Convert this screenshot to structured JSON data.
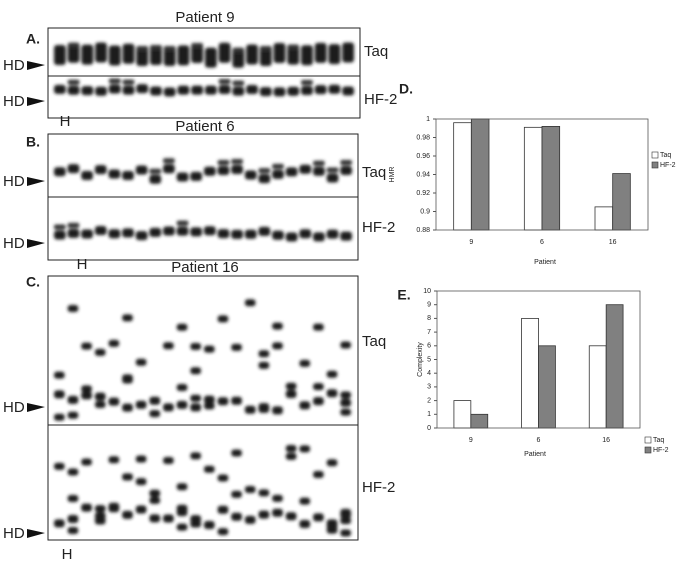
{
  "panels": [
    {
      "letter": "A.",
      "title": "Patient 9",
      "lane_label": "H",
      "rows": [
        {
          "label": "Taq",
          "marker": "HD"
        },
        {
          "label": "HF-2",
          "marker": "HD"
        }
      ]
    },
    {
      "letter": "B.",
      "title": "Patient 6",
      "lane_label": "H",
      "rows": [
        {
          "label": "Taq",
          "marker": "HD"
        },
        {
          "label": "HF-2",
          "marker": "HD"
        }
      ]
    },
    {
      "letter": "C.",
      "title": "Patient 16",
      "lane_label": "H",
      "rows": [
        {
          "label": "Taq",
          "marker": "HD"
        },
        {
          "label": "HF-2",
          "marker": "HD"
        }
      ]
    }
  ],
  "chart_data": [
    {
      "type": "bar",
      "panel_label": "D.",
      "ylabel": "HMR",
      "xlabel": "Patient",
      "categories": [
        "9",
        "6",
        "16"
      ],
      "series": [
        {
          "name": "Taq",
          "color": "#ffffff",
          "values": [
            0.996,
            0.991,
            0.905
          ]
        },
        {
          "name": "HF-2",
          "color": "#808080",
          "values": [
            1.0,
            0.992,
            0.941
          ]
        }
      ],
      "ylim": [
        0.88,
        1
      ],
      "yticks": [
        0.88,
        0.9,
        0.92,
        0.94,
        0.96,
        0.98,
        1
      ],
      "grid": false,
      "legend": "right"
    },
    {
      "type": "bar",
      "panel_label": "E.",
      "ylabel": "Complexity",
      "xlabel": "Patient",
      "categories": [
        "9",
        "6",
        "16"
      ],
      "series": [
        {
          "name": "Taq",
          "color": "#ffffff",
          "values": [
            2,
            8,
            6
          ]
        },
        {
          "name": "HF-2",
          "color": "#808080",
          "values": [
            1,
            6,
            9
          ]
        }
      ],
      "ylim": [
        0,
        10
      ],
      "yticks": [
        0,
        1,
        2,
        3,
        4,
        5,
        6,
        7,
        8,
        9,
        10
      ],
      "grid": false,
      "legend": "right"
    }
  ]
}
